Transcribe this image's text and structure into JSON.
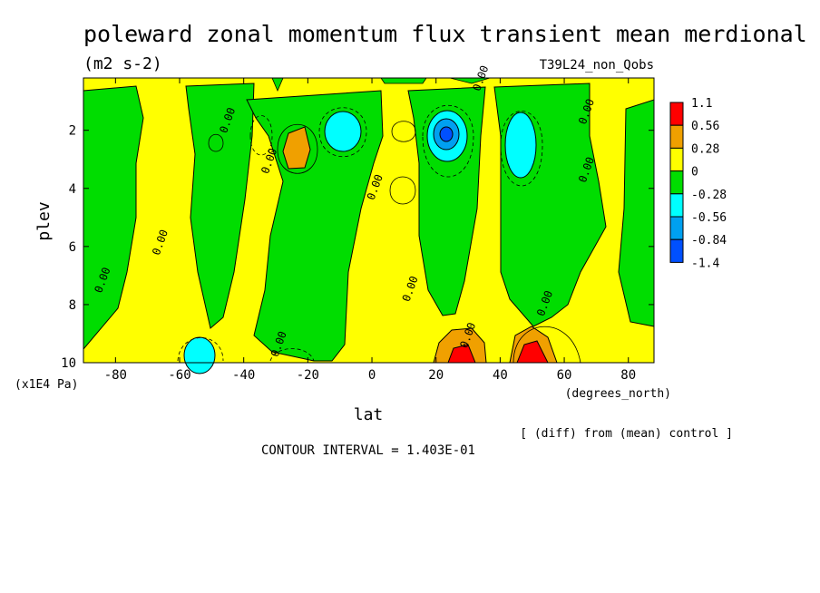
{
  "chart_data": {
    "type": "heatmap",
    "title": "poleward zonal momentum flux transient mean merdional",
    "units": "(m2 s-2)",
    "run_label": "T39L24_non_Qobs",
    "xlabel": "lat",
    "ylabel": "plev",
    "x_unit": "(degrees_north)",
    "y_unit": "(x1E4 Pa)",
    "xlim": [
      -90,
      88
    ],
    "ylim": [
      0.2,
      10
    ],
    "x_ticks": [
      -80,
      -60,
      -40,
      -20,
      0,
      20,
      40,
      60,
      80
    ],
    "y_ticks": [
      2,
      4,
      6,
      8,
      10
    ],
    "y_inverted": true,
    "grid": false,
    "legend_position": "right",
    "contour_interval": "CONTOUR INTERVAL = 1.403E-01",
    "footnote": "[ (diff) from (mean) control ]",
    "colorbar": {
      "labels": [
        "1.1",
        "0.56",
        "0.28",
        "0",
        "-0.28",
        "-0.56",
        "-0.84",
        "-1.4"
      ],
      "colors": [
        "#ff0000",
        "#f0a000",
        "#ffff00",
        "#00dd00",
        "#00ffff",
        "#00a0f0",
        "#0050ff"
      ]
    },
    "contour_labels": [
      {
        "text": "0.00",
        "lat": 35,
        "plev": 0.25
      },
      {
        "text": "0.00",
        "lat": -44,
        "plev": 1.7
      },
      {
        "text": "0.00",
        "lat": -31,
        "plev": 3.1
      },
      {
        "text": "0.00",
        "lat": 2,
        "plev": 4.0
      },
      {
        "text": "0.00",
        "lat": -65,
        "plev": 5.9
      },
      {
        "text": "0.00",
        "lat": -83,
        "plev": 7.2
      },
      {
        "text": "0.00",
        "lat": 13,
        "plev": 7.5
      },
      {
        "text": "0.00",
        "lat": 68,
        "plev": 3.4
      },
      {
        "text": "0.00",
        "lat": 68,
        "plev": 1.4
      },
      {
        "text": "0.00",
        "lat": 55,
        "plev": 8.0
      },
      {
        "text": "0.00",
        "lat": -28,
        "plev": 9.4
      },
      {
        "text": "0.00",
        "lat": 31,
        "plev": 9.1
      }
    ],
    "features": [
      {
        "name": "positive-max-sh20",
        "lat": -22,
        "plev": 2.7,
        "value": 0.35
      },
      {
        "name": "negative-min-sh8",
        "lat": -8,
        "plev": 1.9,
        "value": -0.4
      },
      {
        "name": "negative-min-nh25",
        "lat": 24,
        "plev": 1.9,
        "value": -0.9
      },
      {
        "name": "negative-min-nh48",
        "lat": 47,
        "plev": 2.5,
        "value": -0.45
      },
      {
        "name": "negative-min-sh55",
        "lat": -53,
        "plev": 9.7,
        "value": -0.4
      },
      {
        "name": "positive-max-nh27-surface",
        "lat": 27,
        "plev": 9.7,
        "value": 0.8
      },
      {
        "name": "positive-max-nh48-surface",
        "lat": 49,
        "plev": 9.8,
        "value": 1.0
      }
    ]
  }
}
